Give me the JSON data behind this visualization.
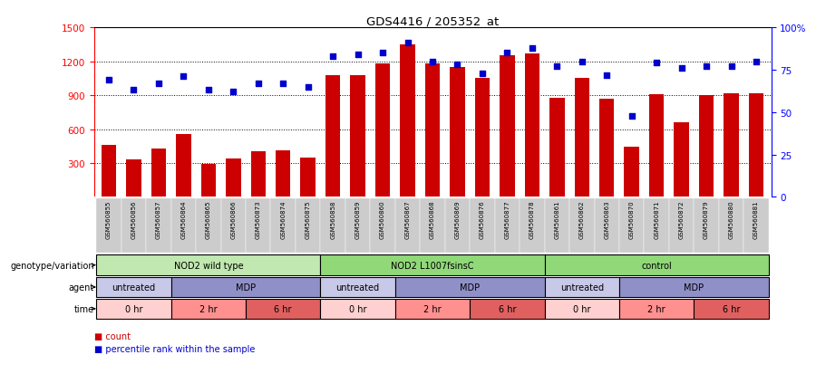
{
  "title": "GDS4416 / 205352_at",
  "samples": [
    "GSM560855",
    "GSM560856",
    "GSM560857",
    "GSM560864",
    "GSM560865",
    "GSM560866",
    "GSM560873",
    "GSM560874",
    "GSM560875",
    "GSM560858",
    "GSM560859",
    "GSM560860",
    "GSM560867",
    "GSM560868",
    "GSM560869",
    "GSM560876",
    "GSM560877",
    "GSM560878",
    "GSM560861",
    "GSM560862",
    "GSM560863",
    "GSM560870",
    "GSM560871",
    "GSM560872",
    "GSM560879",
    "GSM560880",
    "GSM560881"
  ],
  "counts": [
    460,
    330,
    430,
    560,
    290,
    340,
    400,
    410,
    350,
    1080,
    1080,
    1180,
    1350,
    1180,
    1150,
    1050,
    1250,
    1270,
    880,
    1050,
    870,
    440,
    910,
    660,
    900,
    920,
    920
  ],
  "percentile": [
    69,
    63,
    67,
    71,
    63,
    62,
    67,
    67,
    65,
    83,
    84,
    85,
    91,
    80,
    78,
    73,
    85,
    88,
    77,
    80,
    72,
    48,
    79,
    76,
    77,
    77,
    80
  ],
  "bar_color": "#cc0000",
  "dot_color": "#0000cc",
  "ylim_left": [
    0,
    1500
  ],
  "ylim_right": [
    0,
    100
  ],
  "yticks_left": [
    300,
    600,
    900,
    1200,
    1500
  ],
  "yticks_right": [
    0,
    25,
    50,
    75,
    100
  ],
  "genotype_groups": [
    {
      "label": "NOD2 wild type",
      "start": 0,
      "end": 8,
      "color": "#c0e8b0"
    },
    {
      "label": "NOD2 L1007fsinsC",
      "start": 9,
      "end": 17,
      "color": "#90d878"
    },
    {
      "label": "control",
      "start": 18,
      "end": 26,
      "color": "#90d878"
    }
  ],
  "agent_groups": [
    {
      "label": "untreated",
      "start": 0,
      "end": 2,
      "color": "#c8c8e8"
    },
    {
      "label": "MDP",
      "start": 3,
      "end": 8,
      "color": "#9090c8"
    },
    {
      "label": "untreated",
      "start": 9,
      "end": 11,
      "color": "#c8c8e8"
    },
    {
      "label": "MDP",
      "start": 12,
      "end": 17,
      "color": "#9090c8"
    },
    {
      "label": "untreated",
      "start": 18,
      "end": 20,
      "color": "#c8c8e8"
    },
    {
      "label": "MDP",
      "start": 21,
      "end": 26,
      "color": "#9090c8"
    }
  ],
  "time_groups": [
    {
      "label": "0 hr",
      "start": 0,
      "end": 2,
      "color": "#ffd0d0"
    },
    {
      "label": "2 hr",
      "start": 3,
      "end": 5,
      "color": "#ff9090"
    },
    {
      "label": "6 hr",
      "start": 6,
      "end": 8,
      "color": "#e06060"
    },
    {
      "label": "0 hr",
      "start": 9,
      "end": 11,
      "color": "#ffd0d0"
    },
    {
      "label": "2 hr",
      "start": 12,
      "end": 14,
      "color": "#ff9090"
    },
    {
      "label": "6 hr",
      "start": 15,
      "end": 17,
      "color": "#e06060"
    },
    {
      "label": "0 hr",
      "start": 18,
      "end": 20,
      "color": "#ffd0d0"
    },
    {
      "label": "2 hr",
      "start": 21,
      "end": 23,
      "color": "#ff9090"
    },
    {
      "label": "6 hr",
      "start": 24,
      "end": 26,
      "color": "#e06060"
    }
  ],
  "row_labels": [
    "genotype/variation",
    "agent",
    "time"
  ],
  "legend_count_label": "count",
  "legend_pct_label": "percentile rank within the sample",
  "background_color": "#ffffff",
  "xtick_bg_color": "#cccccc"
}
